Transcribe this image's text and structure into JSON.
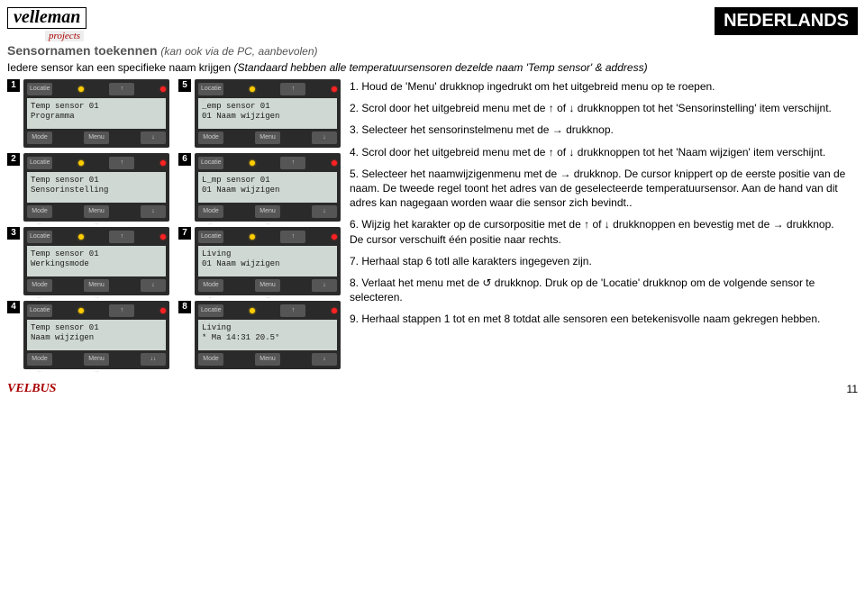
{
  "header": {
    "logo_main": "velleman",
    "logo_sub": "projects",
    "lang": "NEDERLANDS"
  },
  "section_title": "Sensornamen toekennen",
  "section_subtitle": "(kan ook via de PC, aanbevolen)",
  "intro_prefix": "Iedere sensor kan een specifieke naam krijgen ",
  "intro_italic": "(Standaard hebben alle temperatuursensoren dezelde naam 'Temp sensor' & address)",
  "lcds": [
    {
      "n": "1",
      "top_label": "Locatie",
      "screen": "Temp sensor 01\nProgramma",
      "b1": "Mode",
      "b2": "Menu",
      "b3": "↓"
    },
    {
      "n": "2",
      "top_label": "Locatie",
      "screen": "Temp sensor 01\nSensorinstelling",
      "b1": "Mode\n←",
      "b2": "Menu\n→",
      "b3": "↓"
    },
    {
      "n": "3",
      "top_label": "Locatie",
      "screen": "Temp sensor 01\nWerkingsmode",
      "b1": "Mode\n←",
      "b2": "Menu\n→",
      "b3": "↓"
    },
    {
      "n": "4",
      "top_label": "Locatie",
      "screen": "Temp sensor 01\nNaam wijzigen",
      "b1": "Mode\n←",
      "b2": "Menu\n→",
      "b3": "↓↓"
    },
    {
      "n": "5",
      "top_label": "Locatie",
      "screen": "_emp sensor 01\n01 Naam wijzigen",
      "b1": "Mode",
      "b2": "Menu",
      "b3": "↓"
    },
    {
      "n": "6",
      "top_label": "Locatie",
      "screen": "L_mp sensor 01\n01 Naam wijzigen",
      "b1": "Mode\n←",
      "b2": "Menu\n→",
      "b3": "↓"
    },
    {
      "n": "7",
      "top_label": "Locatie",
      "screen": "Living\n01 Naam wijzigen",
      "b1": "Mode\n←",
      "b2": "Menu\n→",
      "b3": "↓"
    },
    {
      "n": "8",
      "top_label": "Locatie",
      "screen": "Living\n* Ma 14:31 20.5°",
      "b1": "Mode",
      "b2": "Menu",
      "b3": "↓"
    }
  ],
  "steps": {
    "s1": "1. Houd de 'Menu' drukknop ingedrukt om het uitgebreid menu op te roepen.",
    "s2": "2. Scrol door het uitgebreid menu met de ↑ of ↓ drukknoppen tot het 'Sensorinstelling' item verschijnt.",
    "s3": "3. Selecteer het sensorinstelmenu met de → drukknop.",
    "s4": "4. Scrol door het uitgebreid menu met de ↑ of ↓ drukknoppen tot het 'Naam wijzigen' item verschijnt.",
    "s5": "5. Selecteer het naamwijzigenmenu met de → drukknop. De cursor knippert op de eerste positie van de naam. De tweede regel toont het adres van de geselecteerde temperatuursensor. Aan de hand van dit adres kan nagegaan worden waar die sensor zich bevindt..",
    "s6": "6. Wijzig het karakter op de cursorpositie met de ↑ of ↓ drukknoppen en bevestig met de → drukknop.\nDe cursor verschuift één positie naar rechts.",
    "s7": "7. Herhaal stap 6 totl alle karakters ingegeven zijn.",
    "s8": "8. Verlaat het menu met de ↺ drukknop. Druk op de 'Locatie' drukknop om de volgende sensor te selecteren.",
    "s9": "9. Herhaal stappen 1 tot en met 8 totdat alle sensoren een betekenisvolle naam gekregen hebben."
  },
  "footer": {
    "logo": "VELBUS",
    "page": "11"
  }
}
